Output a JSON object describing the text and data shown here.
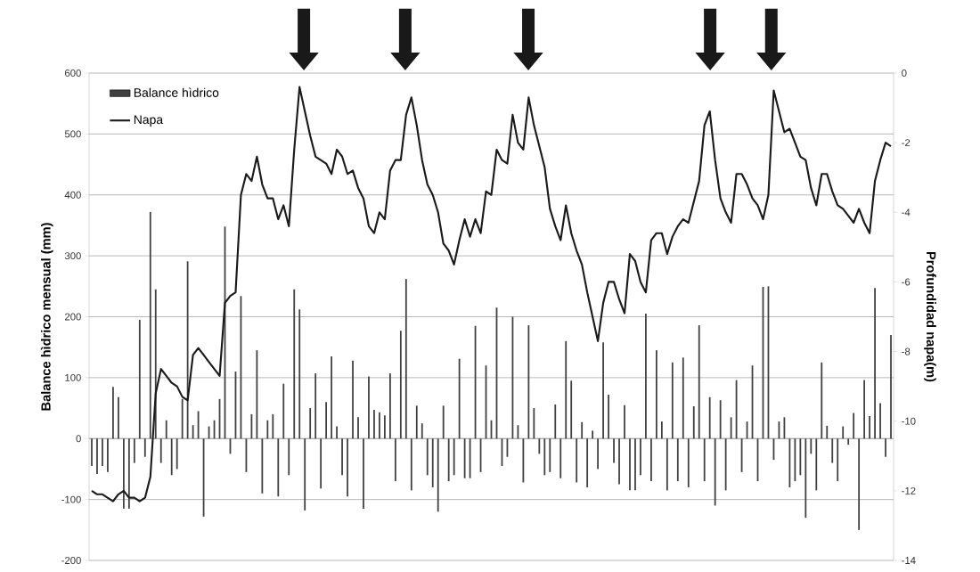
{
  "chart_data": {
    "type": "bar",
    "ylabel": "Balance hìdrico mensual (mm)",
    "y2label": "Profundidad napa(m)",
    "categories": [
      null,
      null,
      null,
      null,
      null,
      null,
      null,
      null,
      null,
      null,
      null,
      null,
      null,
      null,
      null,
      null,
      null,
      null,
      null,
      null,
      null,
      null,
      null,
      null,
      null,
      null,
      null,
      null,
      null,
      null,
      null,
      null,
      null,
      null,
      null,
      null,
      null,
      null,
      null,
      null,
      null,
      null,
      null,
      null,
      null,
      null,
      null,
      null,
      null,
      null,
      null,
      null,
      null,
      null,
      null,
      null,
      null,
      null,
      null,
      null,
      null,
      null,
      null,
      null,
      null,
      null,
      null,
      null,
      null,
      null,
      null,
      null,
      null,
      null,
      null,
      null,
      null,
      null,
      null,
      null,
      null,
      null,
      null,
      null,
      null,
      null,
      null,
      null,
      null,
      null,
      null,
      null,
      null,
      null,
      null,
      null,
      null,
      null,
      null,
      null,
      null,
      null,
      null,
      null,
      null,
      null,
      null,
      null,
      null,
      null,
      null,
      null,
      null,
      null,
      null,
      null,
      null,
      null,
      null,
      null,
      null,
      null,
      null,
      null,
      null,
      null,
      null,
      null,
      null,
      null,
      null,
      null,
      null,
      null,
      null,
      null,
      null,
      null,
      null,
      null,
      null,
      null,
      null,
      null,
      null,
      null,
      null,
      null,
      null,
      null,
      null
    ],
    "series": [
      {
        "name": "Balance hìdrico",
        "color": "#404040",
        "values": [
          -45,
          -58,
          -45,
          -55,
          85,
          68,
          -115,
          -115,
          -40,
          195,
          -30,
          372,
          245,
          -40,
          30,
          -60,
          -50,
          65,
          291,
          22,
          45,
          -128,
          20,
          30,
          65,
          348,
          -25,
          110,
          234,
          -55,
          40,
          145,
          -90,
          30,
          40,
          -95,
          90,
          -60,
          245,
          212,
          -118,
          50,
          107,
          -82,
          60,
          135,
          20,
          -60,
          -95,
          128,
          35,
          -115,
          102,
          47,
          43,
          38,
          107,
          -70,
          177,
          262,
          -85,
          54,
          25,
          -60,
          -80,
          -120,
          54,
          -70,
          -60,
          131,
          -65,
          -65,
          185,
          -55,
          120,
          30,
          215,
          -45,
          -30,
          200,
          22,
          -72,
          186,
          50,
          -25,
          -60,
          -55,
          56,
          -65,
          160,
          95,
          -72,
          27,
          -80,
          13,
          -50,
          158,
          72,
          -40,
          -75,
          55,
          -85,
          -85,
          -60,
          205,
          -70,
          145,
          28,
          -85,
          125,
          -70,
          133,
          -80,
          53,
          186,
          -70,
          68,
          -110,
          63,
          -85,
          35,
          96,
          -55,
          28,
          120,
          -70,
          249,
          250,
          -35,
          28,
          35,
          -80,
          -70,
          -60,
          -130,
          -25,
          -85,
          125,
          21,
          -40,
          -70,
          20,
          -10,
          42,
          -150,
          96,
          37,
          247,
          58,
          -30,
          170
        ]
      },
      {
        "name": "Napa",
        "type": "line",
        "axis": "y2",
        "color": "#1a1a1a",
        "values": [
          -12.0,
          -12.1,
          -12.1,
          -12.2,
          -12.3,
          -12.1,
          -12.0,
          -12.2,
          -12.2,
          -12.3,
          -12.2,
          -11.6,
          -9.2,
          -8.5,
          -8.7,
          -8.9,
          -9.0,
          -9.3,
          -9.4,
          -8.1,
          -7.9,
          -8.1,
          -8.3,
          -8.5,
          -8.7,
          -6.6,
          -6.4,
          -6.3,
          -3.5,
          -2.9,
          -3.1,
          -2.4,
          -3.2,
          -3.6,
          -3.6,
          -4.2,
          -3.8,
          -4.4,
          -2.2,
          -0.4,
          -1.1,
          -1.8,
          -2.4,
          -2.5,
          -2.6,
          -2.9,
          -2.2,
          -2.4,
          -2.9,
          -2.8,
          -3.3,
          -3.6,
          -4.4,
          -4.6,
          -4.0,
          -4.2,
          -2.8,
          -2.5,
          -2.5,
          -1.2,
          -0.7,
          -1.5,
          -2.5,
          -3.2,
          -3.5,
          -4.0,
          -4.9,
          -5.1,
          -5.5,
          -4.8,
          -4.2,
          -4.7,
          -4.2,
          -4.6,
          -3.4,
          -3.5,
          -2.2,
          -2.5,
          -2.6,
          -1.2,
          -2.0,
          -2.2,
          -0.7,
          -1.5,
          -2.1,
          -2.7,
          -3.9,
          -4.4,
          -4.8,
          -3.8,
          -4.6,
          -5.1,
          -5.5,
          -6.3,
          -7.0,
          -7.7,
          -6.6,
          -6.0,
          -6.0,
          -6.5,
          -6.9,
          -5.2,
          -5.4,
          -6.0,
          -6.3,
          -4.8,
          -4.6,
          -4.6,
          -5.2,
          -4.7,
          -4.4,
          -4.2,
          -4.3,
          -3.7,
          -3.1,
          -1.5,
          -1.1,
          -2.5,
          -3.6,
          -4.0,
          -4.3,
          -2.9,
          -2.9,
          -3.2,
          -3.6,
          -3.8,
          -4.2,
          -3.5,
          -0.5,
          -1.1,
          -1.7,
          -1.6,
          -2.0,
          -2.4,
          -2.5,
          -3.3,
          -3.8,
          -2.9,
          -2.9,
          -3.4,
          -3.8,
          -3.9,
          -4.1,
          -4.3,
          -3.9,
          -4.3,
          -4.6,
          -3.1,
          -2.5,
          -2.0,
          -2.1
        ]
      }
    ],
    "ylim": [
      -200,
      600
    ],
    "yticks": [
      -200,
      -100,
      0,
      100,
      200,
      300,
      400,
      500,
      600
    ],
    "y2lim": [
      -14,
      0
    ],
    "y2ticks": [
      -14,
      -12,
      -10,
      -8,
      -6,
      -4,
      -2,
      0
    ],
    "grid": "y",
    "legend": "top left"
  }
}
